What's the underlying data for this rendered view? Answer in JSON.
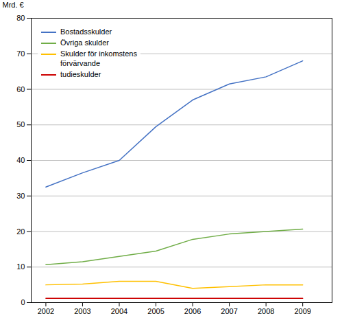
{
  "chart_data": {
    "type": "line",
    "ylabel": "Mrd. €",
    "x": [
      2002,
      2003,
      2004,
      2005,
      2006,
      2007,
      2008,
      2009
    ],
    "series": [
      {
        "name": "Bostadsskulder",
        "color": "#4472C4",
        "values": [
          32.5,
          36.5,
          40.0,
          49.5,
          57.0,
          61.5,
          63.5,
          68.0
        ]
      },
      {
        "name": "Övriga skulder",
        "color": "#70AD47",
        "values": [
          10.7,
          11.5,
          13.0,
          14.5,
          17.8,
          19.3,
          20.0,
          20.7
        ]
      },
      {
        "name": "Skulder för inkomstens\nförvärvande",
        "color": "#FFC000",
        "values": [
          5.0,
          5.2,
          6.0,
          6.0,
          4.0,
          4.5,
          5.0,
          5.0
        ]
      },
      {
        "name": "tudieskulder",
        "color": "#CC0000",
        "values": [
          1.2,
          1.2,
          1.2,
          1.2,
          1.2,
          1.2,
          1.2,
          1.2
        ]
      }
    ],
    "xlim": [
      2001.6,
      2009.8
    ],
    "xticks": [
      2002,
      2003,
      2004,
      2005,
      2006,
      2007,
      2008,
      2009
    ],
    "ylim": [
      0,
      80
    ],
    "yticks": [
      0,
      10,
      20,
      30,
      40,
      50,
      60,
      70,
      80
    ],
    "grid": true,
    "legend": "upper left"
  }
}
